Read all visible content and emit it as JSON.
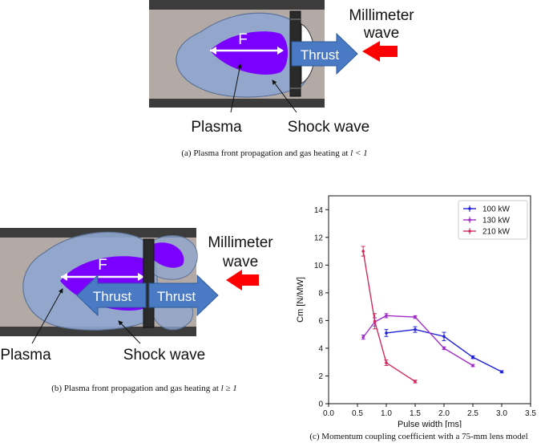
{
  "figure_a": {
    "labels": {
      "f": "F",
      "thrust": "Thrust",
      "millimeter": "Millimeter",
      "wave": "wave",
      "plasma": "Plasma",
      "shock_wave": "Shock wave"
    },
    "caption": "(a) Plasma front propagation and gas heating at",
    "caption_math": "l < 1"
  },
  "figure_b": {
    "labels": {
      "f": "F",
      "thrust_left": "Thrust",
      "thrust_right": "Thrust",
      "millimeter": "Millimeter",
      "wave": "wave",
      "plasma": "Plasma",
      "shock_wave": "Shock wave"
    },
    "caption": "(b) Plasma front propagation and gas heating at",
    "caption_math": "l ≥ 1"
  },
  "figure_c": {
    "caption": "(c) Momentum coupling coefficient with a 75-mm lens model"
  },
  "colors": {
    "plasma": "#7a00ff",
    "shock": "#8ea6cf",
    "tube": "#b3aaa6",
    "wall": "#3c3c3c",
    "thrust": "#4a7ac4",
    "beam": "#ff0000"
  },
  "chart_data": {
    "type": "line",
    "xlabel": "Pulse width [ms]",
    "ylabel": "Cm [N/MW]",
    "xlim": [
      0.0,
      3.5
    ],
    "ylim": [
      0,
      15
    ],
    "xticks": [
      "0.0",
      "0.5",
      "1.0",
      "1.5",
      "2.0",
      "2.5",
      "3.0",
      "3.5"
    ],
    "yticks": [
      "0",
      "2",
      "4",
      "6",
      "8",
      "10",
      "12",
      "14"
    ],
    "legend_position": "top-right",
    "grid": false,
    "series": [
      {
        "name": "100 kW",
        "color": "#1f1fd6",
        "x": [
          1.0,
          1.5,
          2.0,
          2.5,
          3.0
        ],
        "y": [
          5.1,
          5.35,
          4.85,
          3.35,
          2.3
        ],
        "err": [
          0.25,
          0.2,
          0.3,
          0.1,
          0.08
        ]
      },
      {
        "name": "130 kW",
        "color": "#a02cc8",
        "x": [
          0.6,
          0.8,
          1.0,
          1.5,
          2.0,
          2.5
        ],
        "y": [
          4.8,
          5.9,
          6.35,
          6.25,
          4.0,
          2.75
        ],
        "err": [
          0.15,
          0.3,
          0.15,
          0.1,
          0.1,
          0.08
        ]
      },
      {
        "name": "210 kW",
        "color": "#d12a5c",
        "x": [
          0.6,
          0.8,
          1.0,
          1.5
        ],
        "y": [
          11.0,
          5.95,
          2.95,
          1.6
        ],
        "err": [
          0.35,
          0.55,
          0.2,
          0.1
        ]
      }
    ]
  }
}
